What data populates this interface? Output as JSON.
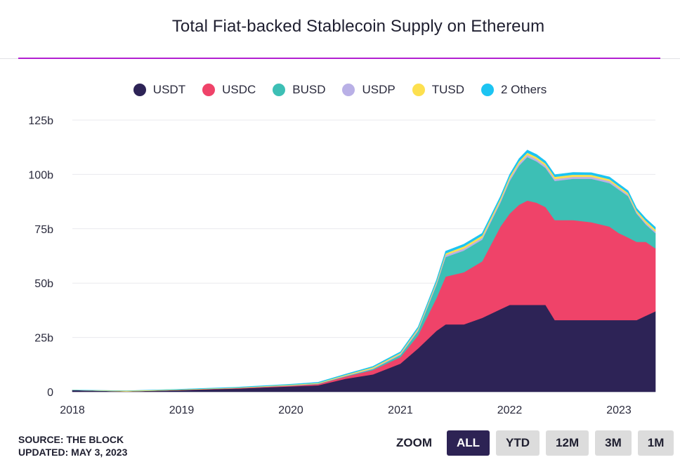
{
  "title": "Total Fiat-backed Stablecoin Supply on Ethereum",
  "footer": {
    "source": "SOURCE: THE BLOCK",
    "updated": "UPDATED: MAY 3, 2023"
  },
  "zoom": {
    "label": "ZOOM",
    "buttons": [
      "ALL",
      "YTD",
      "12M",
      "3M",
      "1M"
    ],
    "active": "ALL"
  },
  "chart_data": {
    "type": "area",
    "stacked": true,
    "title": "Total Fiat-backed Stablecoin Supply on Ethereum",
    "xlabel": "",
    "ylabel": "",
    "x_ticks": [
      "2018",
      "2019",
      "2020",
      "2021",
      "2022",
      "2023"
    ],
    "y_ticks": [
      "0",
      "25b",
      "50b",
      "75b",
      "100b",
      "125b"
    ],
    "ylim": [
      0,
      125
    ],
    "xlim": [
      "2018-01-01",
      "2023-05-03"
    ],
    "grid": true,
    "legend_position": "top-center",
    "x": [
      "2018-01-01",
      "2018-07-01",
      "2019-01-01",
      "2019-07-01",
      "2020-01-01",
      "2020-04-01",
      "2020-07-01",
      "2020-10-01",
      "2021-01-01",
      "2021-03-01",
      "2021-05-01",
      "2021-06-01",
      "2021-08-01",
      "2021-10-01",
      "2021-12-01",
      "2022-01-01",
      "2022-02-01",
      "2022-03-01",
      "2022-04-01",
      "2022-05-01",
      "2022-06-01",
      "2022-08-01",
      "2022-10-01",
      "2022-11-01",
      "2022-12-01",
      "2023-01-01",
      "2023-02-01",
      "2023-03-01",
      "2023-04-01",
      "2023-05-03"
    ],
    "series": [
      {
        "name": "USDT",
        "color": "#2d2356",
        "values": [
          0.8,
          0.2,
          0.8,
          1.5,
          2.5,
          3,
          6,
          8,
          13,
          20,
          28,
          31,
          31,
          34,
          38,
          40,
          40,
          40,
          40,
          40,
          33,
          33,
          33,
          33,
          33,
          33,
          33,
          33,
          35,
          37
        ]
      },
      {
        "name": "USDC",
        "color": "#ef4369",
        "values": [
          0,
          0,
          0.1,
          0.2,
          0.3,
          0.6,
          1,
          2,
          3,
          6,
          15,
          22,
          24,
          26,
          38,
          42,
          46,
          48,
          47,
          45,
          46,
          46,
          45,
          44,
          43,
          40,
          38,
          36,
          34,
          29
        ]
      },
      {
        "name": "BUSD",
        "color": "#3dbfb5",
        "values": [
          0,
          0,
          0,
          0,
          0.1,
          0.1,
          0.2,
          0.5,
          1,
          2,
          6,
          9,
          10,
          10,
          11,
          15,
          18,
          20,
          19,
          18,
          18,
          19,
          20,
          20,
          20,
          20,
          19,
          13,
          8,
          7
        ]
      },
      {
        "name": "USDP",
        "color": "#b9b0e6",
        "values": [
          0,
          0,
          0,
          0,
          0.1,
          0.1,
          0.2,
          0.3,
          0.4,
          0.6,
          0.8,
          0.9,
          0.9,
          0.9,
          0.9,
          1,
          1,
          1,
          1,
          1,
          0.9,
          0.9,
          0.9,
          0.9,
          0.9,
          0.8,
          0.7,
          0.7,
          0.7,
          0.7
        ]
      },
      {
        "name": "TUSD",
        "color": "#fde04f",
        "values": [
          0,
          0.3,
          0.2,
          0.2,
          0.3,
          0.3,
          0.4,
          0.5,
          0.5,
          0.6,
          0.7,
          0.8,
          1,
          1,
          1,
          1,
          1,
          1,
          1,
          1,
          1,
          1,
          0.9,
          0.9,
          0.9,
          0.8,
          0.8,
          0.8,
          1,
          1
        ]
      },
      {
        "name": "2 Others",
        "color": "#1cc4f2",
        "values": [
          0,
          0,
          0.1,
          0.2,
          0.2,
          0.3,
          0.3,
          0.4,
          0.5,
          0.6,
          0.8,
          1,
          1,
          1,
          1,
          1,
          1.2,
          1.2,
          1.2,
          1.1,
          1,
          1,
          1,
          1,
          1,
          1,
          1,
          1,
          1,
          1
        ]
      }
    ]
  }
}
